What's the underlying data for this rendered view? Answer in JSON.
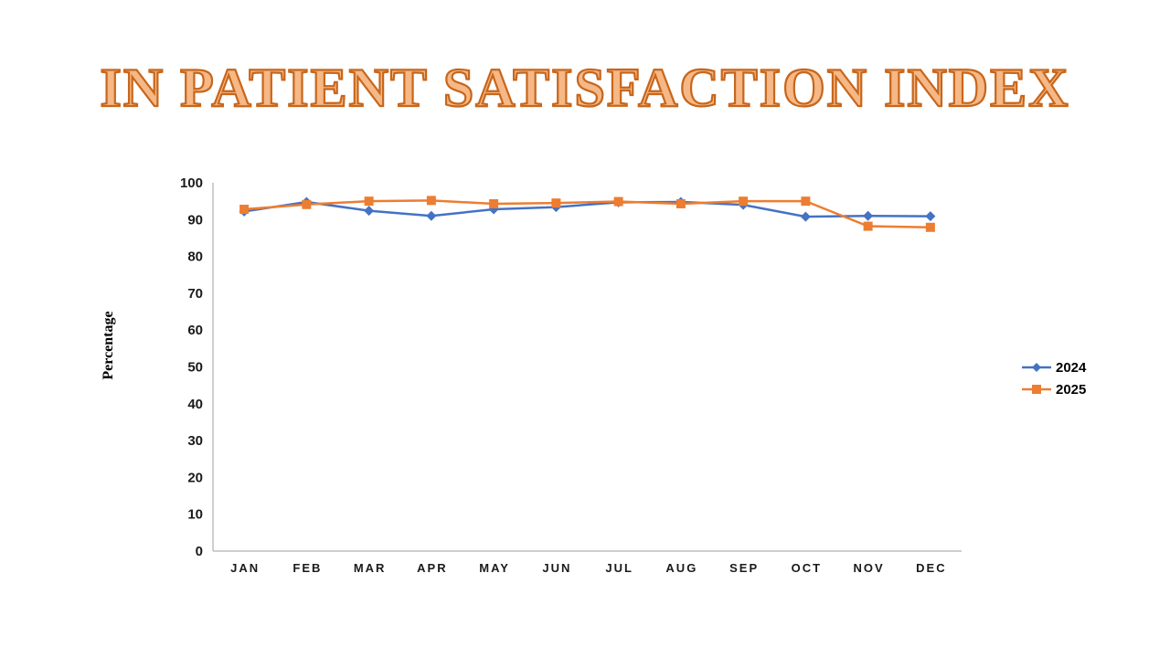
{
  "slide": {
    "title": "IN PATIENT SATISFACTION INDEX",
    "title_fill_color": "#F5B886",
    "title_outline_color": "#C8661B",
    "background_color": "#FFFFFF"
  },
  "chart_data": {
    "type": "line",
    "title": "IN PATIENT SATISFACTION INDEX",
    "xlabel": "",
    "ylabel": "Percentage",
    "ylim": [
      0,
      100
    ],
    "yticks": [
      0,
      10,
      20,
      30,
      40,
      50,
      60,
      70,
      80,
      90,
      100
    ],
    "grid": false,
    "legend_position": "right",
    "axis_color": "#BFBFBF",
    "tick_label_color": "#1A1A1A",
    "categories": [
      "JAN",
      "FEB",
      "MAR",
      "APR",
      "MAY",
      "JUN",
      "JUL",
      "AUG",
      "SEP",
      "OCT",
      "NOV",
      "DEC"
    ],
    "series": [
      {
        "name": "2024",
        "color": "#4472C4",
        "marker": "diamond",
        "values": [
          92.2,
          94.8,
          92.4,
          91.0,
          92.8,
          93.4,
          94.7,
          94.8,
          94.0,
          90.8,
          91.0,
          90.9
        ]
      },
      {
        "name": "2025",
        "color": "#ED7D31",
        "marker": "square",
        "values": [
          92.8,
          94.1,
          95.0,
          95.2,
          94.3,
          94.5,
          94.9,
          94.3,
          95.0,
          95.0,
          88.2,
          87.9
        ]
      }
    ]
  }
}
